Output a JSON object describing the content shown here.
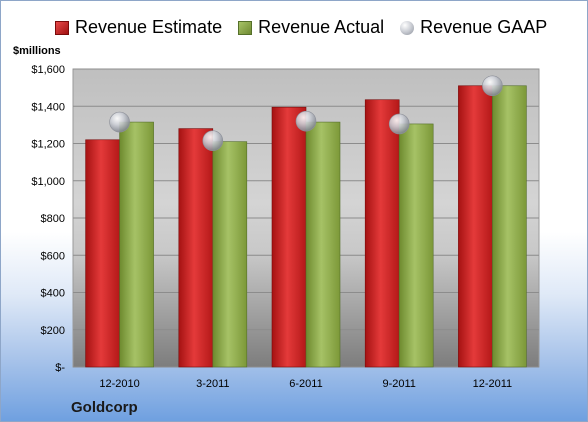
{
  "legend": {
    "estimate": "Revenue Estimate",
    "actual": "Revenue Actual",
    "gaap": "Revenue GAAP"
  },
  "unit_label": "$millions",
  "company": "Goldcorp",
  "colors": {
    "estimate": "#c62424",
    "actual": "#8aa64a",
    "gaap": "#b9bcc4"
  },
  "chart_data": {
    "type": "bar",
    "categories": [
      "12-2010",
      "3-2011",
      "6-2011",
      "9-2011",
      "12-2011"
    ],
    "series": [
      {
        "name": "Revenue Estimate",
        "values": [
          1220,
          1280,
          1395,
          1435,
          1510
        ]
      },
      {
        "name": "Revenue Actual",
        "values": [
          1315,
          1210,
          1315,
          1305,
          1510
        ]
      },
      {
        "name": "Revenue GAAP",
        "marker": "circle",
        "values": [
          1315,
          1215,
          1320,
          1305,
          1510
        ]
      }
    ],
    "ylabel": "$millions",
    "ylim": [
      0,
      1600
    ],
    "yticks": [
      {
        "value": 0,
        "label": "$-"
      },
      {
        "value": 200,
        "label": "$200"
      },
      {
        "value": 400,
        "label": "$400"
      },
      {
        "value": 600,
        "label": "$600"
      },
      {
        "value": 800,
        "label": "$800"
      },
      {
        "value": 1000,
        "label": "$1,000"
      },
      {
        "value": 1200,
        "label": "$1,200"
      },
      {
        "value": 1400,
        "label": "$1,400"
      },
      {
        "value": 1600,
        "label": "$1,600"
      }
    ],
    "grid": true,
    "legend_position": "top"
  }
}
